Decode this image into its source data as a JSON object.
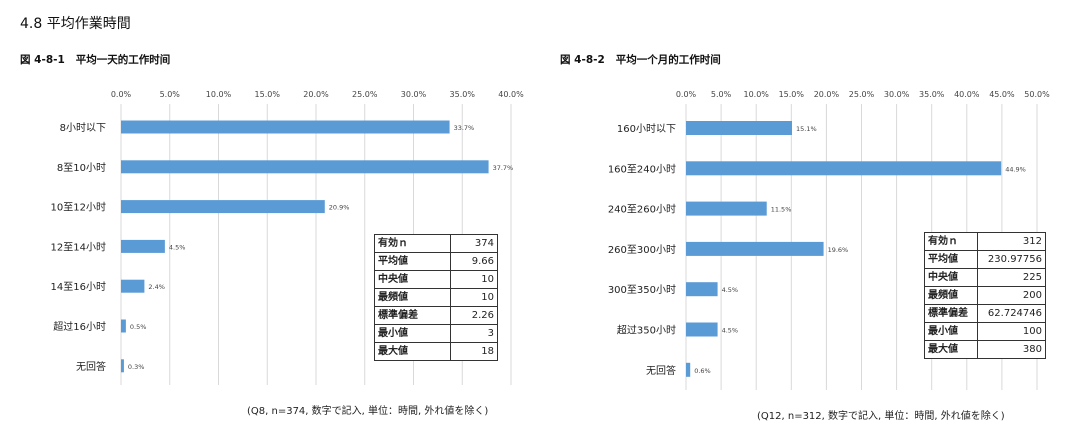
{
  "section_title": "4.8  平均作業時間",
  "chart_data": [
    {
      "type": "bar",
      "orientation": "horizontal",
      "figure_label": "図 4-8-1",
      "title": "平均一天的工作时间",
      "categories": [
        "8小时以下",
        "8至10小时",
        "10至12小时",
        "12至14小时",
        "14至16小时",
        "超过16小时",
        "无回答"
      ],
      "values": [
        33.7,
        37.7,
        20.9,
        4.5,
        2.4,
        0.5,
        0.3
      ],
      "value_labels": [
        "33.7%",
        "37.7%",
        "20.9%",
        "4.5%",
        "2.4%",
        "0.5%",
        "0.3%"
      ],
      "xlim": [
        0,
        40
      ],
      "ticks": [
        0,
        5,
        10,
        15,
        20,
        25,
        30,
        35,
        40
      ],
      "tick_labels": [
        "0.0%",
        "5.0%",
        "10.0%",
        "15.0%",
        "20.0%",
        "25.0%",
        "30.0%",
        "35.0%",
        "40.0%"
      ],
      "grid": true,
      "bar_color": "#5b9bd5",
      "stats": [
        {
          "label": "有効ｎ",
          "value": "374"
        },
        {
          "label": "平均値",
          "value": "9.66"
        },
        {
          "label": "中央値",
          "value": "10"
        },
        {
          "label": "最頻値",
          "value": "10"
        },
        {
          "label": "標準偏差",
          "value": "2.26"
        },
        {
          "label": "最小値",
          "value": "3"
        },
        {
          "label": "最大値",
          "value": "18"
        }
      ],
      "note": "(Q8, n=374, 数字で記入, 単位：時間, 外れ値を除く)"
    },
    {
      "type": "bar",
      "orientation": "horizontal",
      "figure_label": "図 4-8-2",
      "title": "平均一个月的工作时间",
      "categories": [
        "160小时以下",
        "160至240小时",
        "240至260小时",
        "260至300小时",
        "300至350小时",
        "超过350小时",
        "无回答"
      ],
      "values": [
        15.1,
        44.9,
        11.5,
        19.6,
        4.5,
        4.5,
        0.6
      ],
      "value_labels": [
        "15.1%",
        "44.9%",
        "11.5%",
        "19.6%",
        "4.5%",
        "4.5%",
        "0.6%"
      ],
      "xlim": [
        0,
        50
      ],
      "ticks": [
        0,
        5,
        10,
        15,
        20,
        25,
        30,
        35,
        40,
        45,
        50
      ],
      "tick_labels": [
        "0.0%",
        "5.0%",
        "10.0%",
        "15.0%",
        "20.0%",
        "25.0%",
        "30.0%",
        "35.0%",
        "40.0%",
        "45.0%",
        "50.0%"
      ],
      "grid": true,
      "bar_color": "#5b9bd5",
      "stats": [
        {
          "label": "有効ｎ",
          "value": "312"
        },
        {
          "label": "平均値",
          "value": "230.97756"
        },
        {
          "label": "中央値",
          "value": "225"
        },
        {
          "label": "最頻値",
          "value": "200"
        },
        {
          "label": "標準偏差",
          "value": "62.724746"
        },
        {
          "label": "最小値",
          "value": "100"
        },
        {
          "label": "最大値",
          "value": "380"
        }
      ],
      "note": "(Q12, n=312, 数字で記入, 単位：時間, 外れ値を除く)"
    }
  ]
}
